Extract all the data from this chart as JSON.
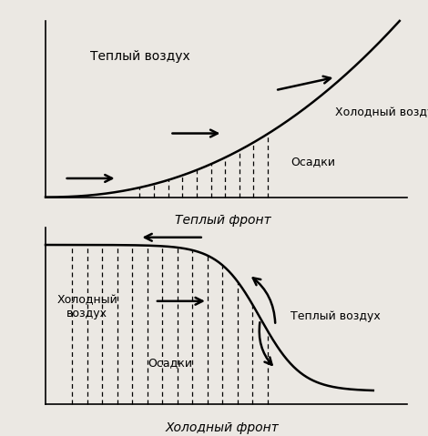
{
  "fig_width": 4.7,
  "fig_height": 4.79,
  "dpi": 100,
  "bg_color": "#ebe8e3",
  "panel1": {
    "title": "Теплый фронт",
    "label_warm": "Теплый воздух",
    "label_cold": "Холодный воздух",
    "label_precip": "Осадки"
  },
  "panel2": {
    "title": "Холодный фронт",
    "label_warm": "Теплый воздух",
    "label_cold": "Холодный\nвоздух",
    "label_precip": "Осадки"
  }
}
